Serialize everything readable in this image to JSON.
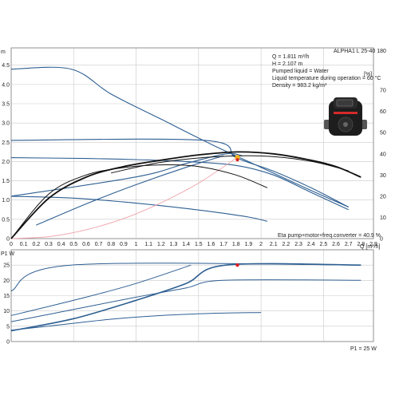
{
  "top_right_label": "ALPHA1 L 25-40 180",
  "info": {
    "q": "Q = 1.811 m³/h",
    "h": "H = 2.107 m",
    "liquid": "Pumped liquid = Water",
    "temp": "Liquid temperature during operation = 60 °C",
    "density": "Density = 983.2 kg/m³"
  },
  "eta_text": "Eta pump+motor+freq.converter = 40.9 %",
  "p1_text": "P1 = 25 W",
  "pump_image": "pump-icon",
  "colors": {
    "curve_blue": "#2e5f92",
    "efficiency_black": "#111111",
    "system_pink": "#f0a0a8",
    "duty_point_red": "#e02020",
    "duty_point_orange": "#f0b020"
  },
  "chart_data": [
    {
      "type": "line",
      "title": "",
      "xlabel": "Q [m³/h]",
      "ylabel": "m",
      "y2label": "[%]",
      "xlim": [
        0,
        2.9
      ],
      "ylim": [
        0,
        4.95
      ],
      "y2lim": [
        0,
        90
      ],
      "x_ticks": [
        "0",
        "0.1",
        "0.2",
        "0.3",
        "0.4",
        "0.5",
        "0.6",
        "0.7",
        "0.8",
        "0.9",
        "1",
        "1.1",
        "1.2",
        "1.3",
        "1.4",
        "1.5",
        "1.6",
        "1.7",
        "1.8",
        "1.9",
        "2",
        "2.1",
        "2.2",
        "2.3",
        "2.4",
        "2.5",
        "2.6",
        "2.7",
        "2.8",
        "2.9"
      ],
      "y_ticks": [
        "0",
        "0.5",
        "1.0",
        "1.5",
        "2.0",
        "2.5",
        "3.0",
        "3.5",
        "4.0",
        "4.5"
      ],
      "y2_ticks": [
        "0",
        "10",
        "20",
        "30",
        "40",
        "50",
        "60",
        "70"
      ],
      "grid": true,
      "head_curves": [
        {
          "x": [
            0,
            0.48,
            0.8,
            1.2,
            1.6,
            2.0,
            2.4,
            2.7
          ],
          "y": [
            4.4,
            4.4,
            3.75,
            3.1,
            2.45,
            1.85,
            1.25,
            0.82
          ]
        },
        {
          "x": [
            0,
            1.55,
            1.8,
            2.1,
            2.4,
            2.7
          ],
          "y": [
            2.55,
            2.55,
            2.1,
            1.75,
            1.32,
            0.82
          ]
        },
        {
          "x": [
            0,
            0.6,
            1.0,
            1.4,
            1.8,
            2.1,
            2.4,
            2.7
          ],
          "y": [
            2.1,
            2.08,
            2.05,
            2.0,
            1.9,
            1.65,
            1.2,
            0.75
          ]
        },
        {
          "x": [
            0,
            0.5,
            0.9,
            1.3,
            1.6,
            1.9,
            2.05
          ],
          "y": [
            1.1,
            1.05,
            0.95,
            0.82,
            0.7,
            0.56,
            0.45
          ]
        },
        {
          "x": [
            0,
            1.0,
            1.4,
            1.72,
            1.85
          ],
          "y": [
            1.1,
            1.6,
            1.95,
            2.2,
            2.15
          ]
        },
        {
          "x": [
            0.2,
            0.6,
            1.0,
            1.4,
            1.7
          ],
          "y": [
            0.35,
            0.9,
            1.4,
            1.85,
            2.15
          ]
        }
      ],
      "efficiency_curves": [
        {
          "x": [
            0,
            0.3,
            0.6,
            0.9,
            1.2,
            1.5,
            1.811,
            2.1,
            2.4,
            2.6,
            2.8
          ],
          "y": [
            0,
            19,
            29,
            34,
            37,
            39.5,
            40.9,
            40,
            37,
            34,
            29
          ]
        },
        {
          "x": [
            0,
            0.3,
            0.6,
            0.9,
            1.2,
            1.5,
            1.8,
            2.05
          ],
          "y": [
            0,
            21,
            30,
            33.5,
            34.8,
            34,
            30,
            24
          ]
        },
        {
          "x": [
            0.8,
            1.2,
            1.6,
            2.0,
            2.4,
            2.7
          ],
          "y": [
            31,
            36,
            38.5,
            39,
            36.5,
            32
          ]
        }
      ],
      "system_curve": {
        "x": [
          0,
          0.3,
          0.6,
          0.9,
          1.2,
          1.5,
          1.811
        ],
        "y": [
          0,
          0.05,
          0.23,
          0.52,
          0.93,
          1.44,
          2.107
        ]
      },
      "duty_point": {
        "x": 1.811,
        "y": 2.107
      }
    },
    {
      "type": "line",
      "title": "",
      "xlabel": "",
      "ylabel": "P1 W",
      "xlim": [
        0,
        2.9
      ],
      "ylim": [
        0,
        30
      ],
      "y_ticks": [
        "0",
        "5",
        "10",
        "15",
        "20",
        "25"
      ],
      "grid": true,
      "power_curves": [
        {
          "x": [
            0,
            0.48,
            2.8
          ],
          "y": [
            16.5,
            25,
            25
          ]
        },
        {
          "x": [
            0,
            0.6,
            1.0,
            1.44
          ],
          "y": [
            8.5,
            14.5,
            19,
            25
          ]
        },
        {
          "x": [
            0,
            0.5,
            1.0,
            1.4,
            1.7,
            2.8
          ],
          "y": [
            6.5,
            10.5,
            14.5,
            17.5,
            20,
            20
          ]
        },
        {
          "x": [
            0,
            0.5,
            1.0,
            1.4,
            1.72,
            2.8
          ],
          "y": [
            3.5,
            7.5,
            13.5,
            19,
            25,
            25
          ]
        },
        {
          "x": [
            0,
            0.4,
            0.8,
            1.2,
            1.6,
            2.0
          ],
          "y": [
            3.7,
            5.5,
            7.3,
            8.5,
            9.2,
            9.5
          ]
        }
      ],
      "duty_point": {
        "x": 1.811,
        "y": 25
      }
    }
  ]
}
